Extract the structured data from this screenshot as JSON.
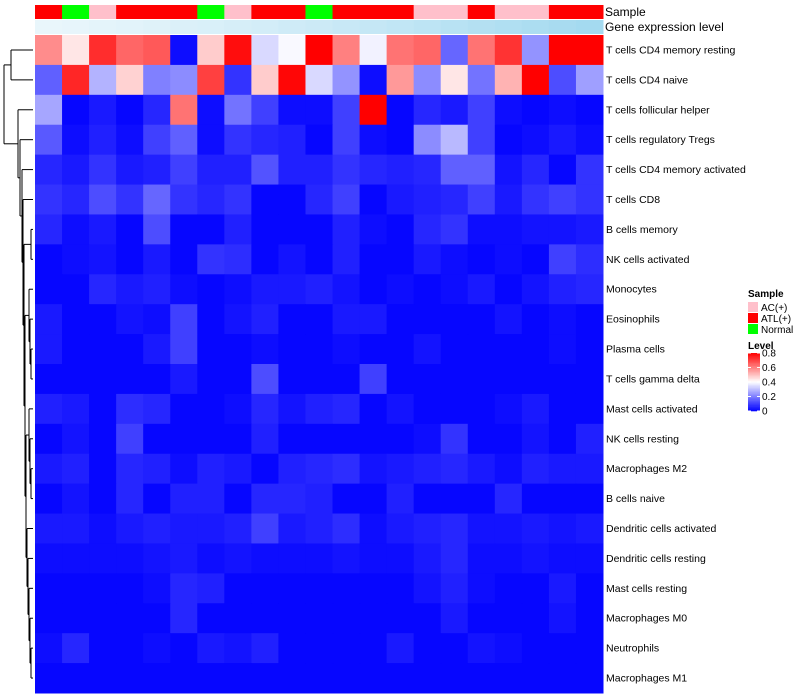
{
  "chart_data": {
    "type": "heatmap",
    "annotation_labels": [
      "Sample",
      "Gene expression level"
    ],
    "rows": [
      "T cells CD4 memory resting",
      "T cells CD4 naive",
      "T cells follicular helper",
      "T cells regulatory  Tregs",
      "T cells CD4 memory activated",
      "T cells CD8",
      "B cells memory",
      "NK cells activated",
      "Monocytes",
      "Eosinophils",
      "Plasma cells",
      "T cells gamma delta",
      "Mast cells activated",
      "NK cells resting",
      "Macrophages M2",
      "B cells naive",
      "Dendritic cells activated",
      "Dendritic cells resting",
      "Mast cells resting",
      "Macrophages M0",
      "Neutrophils",
      "Macrophages M1"
    ],
    "sample_groups": [
      "ATL(+)",
      "Normal",
      "AC(+)",
      "ATL(+)",
      "ATL(+)",
      "ATL(+)",
      "Normal",
      "AC(+)",
      "ATL(+)",
      "ATL(+)",
      "Normal",
      "ATL(+)",
      "ATL(+)",
      "ATL(+)",
      "AC(+)",
      "AC(+)",
      "ATL(+)",
      "AC(+)",
      "AC(+)",
      "ATL(+)",
      "ATL(+)"
    ],
    "expression_level": [
      0.05,
      0.07,
      0.1,
      0.12,
      0.15,
      0.18,
      0.2,
      0.23,
      0.26,
      0.3,
      0.33,
      0.37,
      0.4,
      0.44,
      0.48,
      0.52,
      0.56,
      0.6,
      0.64,
      0.68,
      0.72
    ],
    "values": [
      [
        0.58,
        0.44,
        0.73,
        0.64,
        0.66,
        0.02,
        0.48,
        0.78,
        0.34,
        0.39,
        0.8,
        0.6,
        0.38,
        0.62,
        0.64,
        0.16,
        0.62,
        0.72,
        0.23,
        0.8,
        0.8
      ],
      [
        0.15,
        0.74,
        0.28,
        0.47,
        0.2,
        0.22,
        0.7,
        0.08,
        0.48,
        0.79,
        0.34,
        0.23,
        0.02,
        0.56,
        0.22,
        0.44,
        0.18,
        0.52,
        0.8,
        0.12,
        0.25
      ],
      [
        0.26,
        0.01,
        0.04,
        0.01,
        0.06,
        0.62,
        0.02,
        0.18,
        0.1,
        0.02,
        0.02,
        0.1,
        0.82,
        0.01,
        0.06,
        0.04,
        0.1,
        0.02,
        0.01,
        0.02,
        0.01
      ],
      [
        0.14,
        0.02,
        0.05,
        0.02,
        0.1,
        0.15,
        0.02,
        0.08,
        0.06,
        0.05,
        0.01,
        0.1,
        0.02,
        0.01,
        0.22,
        0.29,
        0.1,
        0.01,
        0.02,
        0.04,
        0.02
      ],
      [
        0.06,
        0.04,
        0.08,
        0.04,
        0.05,
        0.1,
        0.05,
        0.05,
        0.13,
        0.05,
        0.05,
        0.08,
        0.06,
        0.05,
        0.06,
        0.15,
        0.15,
        0.03,
        0.06,
        0.01,
        0.08
      ],
      [
        0.08,
        0.06,
        0.12,
        0.08,
        0.16,
        0.08,
        0.06,
        0.08,
        0.01,
        0.01,
        0.06,
        0.1,
        0.01,
        0.04,
        0.05,
        0.06,
        0.1,
        0.04,
        0.08,
        0.1,
        0.08
      ],
      [
        0.06,
        0.02,
        0.04,
        0.01,
        0.12,
        0.01,
        0.01,
        0.05,
        0.01,
        0.01,
        0.01,
        0.05,
        0.02,
        0.01,
        0.06,
        0.08,
        0.02,
        0.02,
        0.03,
        0.03,
        0.04
      ],
      [
        0.01,
        0.02,
        0.03,
        0.01,
        0.04,
        0.01,
        0.08,
        0.07,
        0.01,
        0.03,
        0.01,
        0.05,
        0.01,
        0.01,
        0.04,
        0.02,
        0.01,
        0.02,
        0.01,
        0.1,
        0.07
      ],
      [
        0.01,
        0.01,
        0.06,
        0.04,
        0.05,
        0.02,
        0.01,
        0.02,
        0.04,
        0.04,
        0.05,
        0.03,
        0.01,
        0.02,
        0.01,
        0.02,
        0.04,
        0.01,
        0.03,
        0.05,
        0.06
      ],
      [
        0.04,
        0.01,
        0.01,
        0.03,
        0.02,
        0.1,
        0.01,
        0.03,
        0.05,
        0.01,
        0.01,
        0.04,
        0.04,
        0.01,
        0.01,
        0.01,
        0.01,
        0.03,
        0.01,
        0.02,
        0.01
      ],
      [
        0.04,
        0.01,
        0.01,
        0.01,
        0.04,
        0.1,
        0.01,
        0.01,
        0.02,
        0.01,
        0.01,
        0.02,
        0.01,
        0.01,
        0.03,
        0.01,
        0.01,
        0.01,
        0.01,
        0.02,
        0.01
      ],
      [
        0.01,
        0.01,
        0.01,
        0.01,
        0.01,
        0.04,
        0.01,
        0.01,
        0.12,
        0.01,
        0.01,
        0.01,
        0.1,
        0.01,
        0.01,
        0.01,
        0.01,
        0.01,
        0.01,
        0.01,
        0.01
      ],
      [
        0.05,
        0.04,
        0.01,
        0.07,
        0.06,
        0.01,
        0.01,
        0.02,
        0.06,
        0.03,
        0.05,
        0.06,
        0.01,
        0.03,
        0.01,
        0.01,
        0.01,
        0.02,
        0.04,
        0.01,
        0.01
      ],
      [
        0.01,
        0.03,
        0.01,
        0.1,
        0.01,
        0.01,
        0.01,
        0.01,
        0.05,
        0.01,
        0.01,
        0.01,
        0.01,
        0.01,
        0.02,
        0.08,
        0.01,
        0.01,
        0.03,
        0.01,
        0.05
      ],
      [
        0.04,
        0.05,
        0.01,
        0.06,
        0.05,
        0.02,
        0.05,
        0.04,
        0.01,
        0.05,
        0.06,
        0.07,
        0.03,
        0.04,
        0.05,
        0.06,
        0.04,
        0.02,
        0.05,
        0.04,
        0.04
      ],
      [
        0.01,
        0.03,
        0.01,
        0.06,
        0.01,
        0.05,
        0.05,
        0.01,
        0.06,
        0.06,
        0.05,
        0.01,
        0.01,
        0.05,
        0.01,
        0.01,
        0.01,
        0.06,
        0.01,
        0.01,
        0.01
      ],
      [
        0.04,
        0.04,
        0.02,
        0.04,
        0.05,
        0.04,
        0.04,
        0.05,
        0.1,
        0.04,
        0.05,
        0.07,
        0.02,
        0.04,
        0.05,
        0.06,
        0.03,
        0.03,
        0.04,
        0.03,
        0.04
      ],
      [
        0.02,
        0.02,
        0.02,
        0.02,
        0.03,
        0.04,
        0.02,
        0.03,
        0.02,
        0.02,
        0.02,
        0.03,
        0.02,
        0.02,
        0.04,
        0.06,
        0.02,
        0.02,
        0.03,
        0.02,
        0.02
      ],
      [
        0.01,
        0.01,
        0.01,
        0.01,
        0.02,
        0.06,
        0.05,
        0.01,
        0.01,
        0.01,
        0.01,
        0.01,
        0.01,
        0.01,
        0.03,
        0.05,
        0.02,
        0.01,
        0.01,
        0.04,
        0.01
      ],
      [
        0.01,
        0.01,
        0.01,
        0.01,
        0.01,
        0.06,
        0.01,
        0.01,
        0.01,
        0.01,
        0.01,
        0.01,
        0.01,
        0.01,
        0.01,
        0.04,
        0.01,
        0.01,
        0.01,
        0.03,
        0.01
      ],
      [
        0.02,
        0.06,
        0.01,
        0.01,
        0.02,
        0.01,
        0.04,
        0.03,
        0.05,
        0.01,
        0.01,
        0.01,
        0.01,
        0.04,
        0.01,
        0.01,
        0.03,
        0.02,
        0.01,
        0.01,
        0.01
      ],
      [
        0.01,
        0.01,
        0.01,
        0.01,
        0.01,
        0.01,
        0.01,
        0.01,
        0.01,
        0.01,
        0.01,
        0.01,
        0.01,
        0.01,
        0.01,
        0.01,
        0.01,
        0.01,
        0.01,
        0.01,
        0.01
      ]
    ],
    "legend": {
      "sample_title": "Sample",
      "sample_entries": [
        {
          "label": "AC(+)",
          "color": "#FFC0CB"
        },
        {
          "label": "ATL(+)",
          "color": "#FF0000"
        },
        {
          "label": "Normal",
          "color": "#00FF00"
        }
      ],
      "level_title": "Level",
      "level_ticks": [
        "0.8",
        "0.6",
        "0.4",
        "0.2",
        "0"
      ],
      "level_range": [
        0,
        0.8
      ]
    },
    "color_scale": {
      "low": "#0000FF",
      "mid": "#FFFFFF",
      "high": "#FF0000",
      "mid_value": 0.4
    },
    "expression_colors": {
      "low": "#EEF8FC",
      "high": "#87CEEB"
    },
    "dendrogram_color": "#000000"
  }
}
